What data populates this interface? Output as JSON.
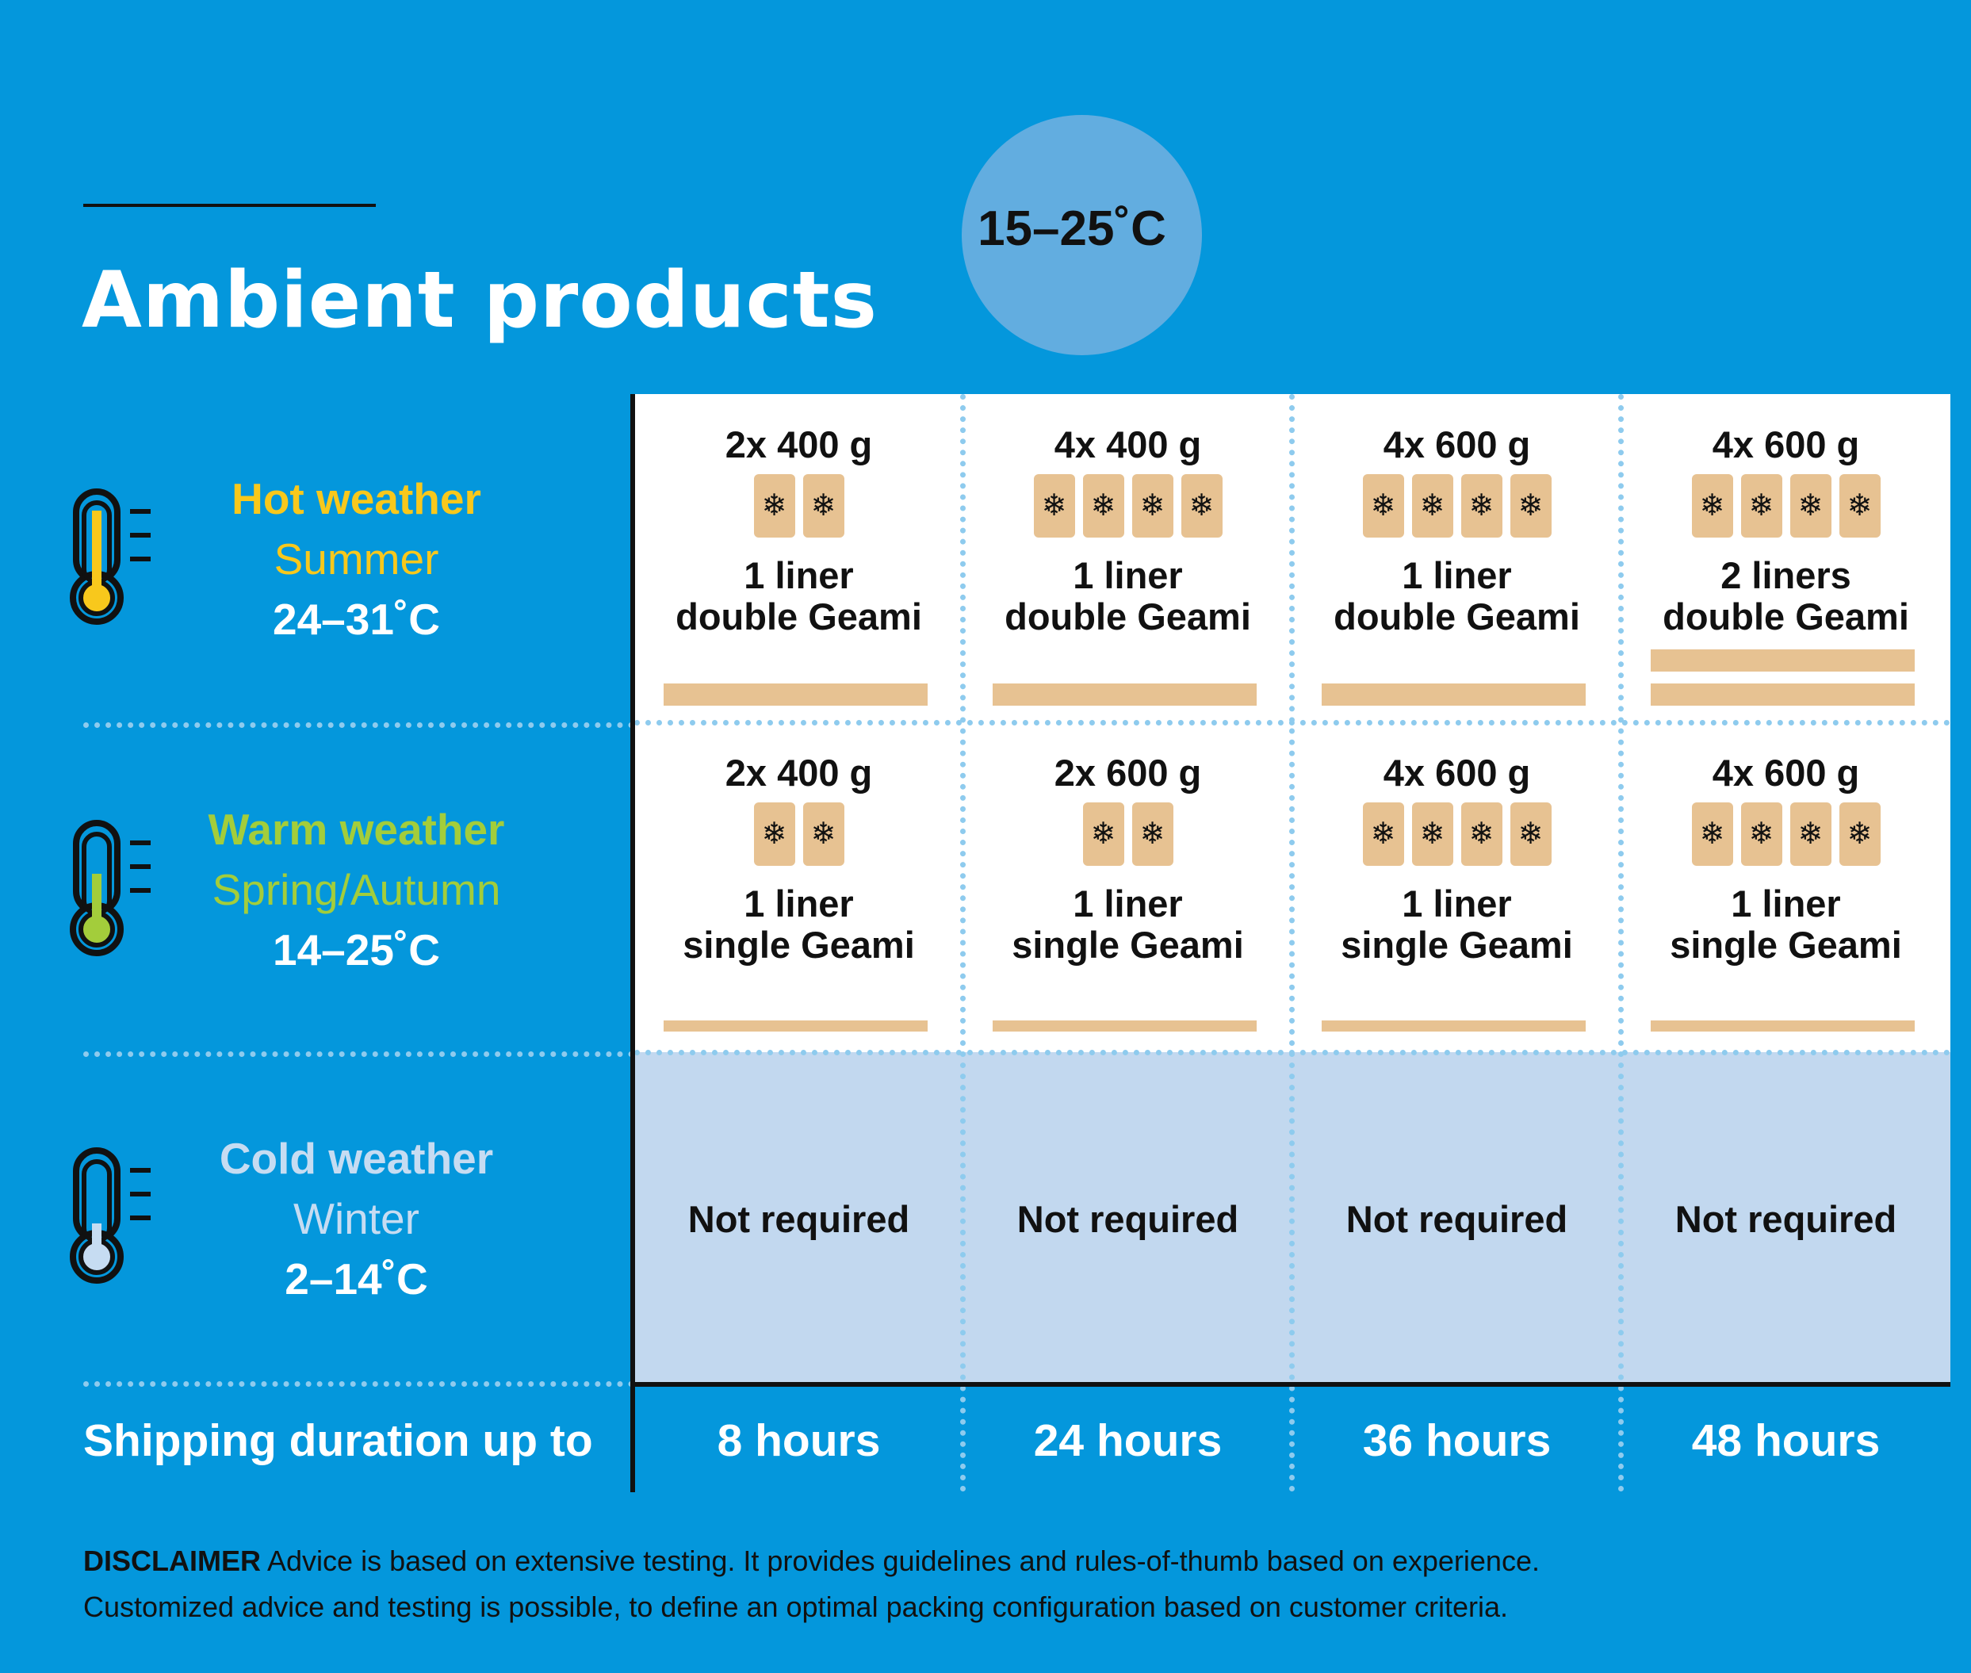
{
  "header": {
    "title": "Ambient products",
    "range": "15–25˚C"
  },
  "colors": {
    "background": "#0497dc",
    "hot": "#f8c81c",
    "warm": "#a3cd3b",
    "cold": "#c6dcf2",
    "pack": "#e7c292",
    "cold_cells": "#c2d8ef"
  },
  "rows": [
    {
      "title": "Hot weather",
      "season": "Summer",
      "temp": "24–31˚C",
      "icon": "thermometer-icon"
    },
    {
      "title": "Warm weather",
      "season": "Spring/Autumn",
      "temp": "14–25˚C",
      "icon": "thermometer-icon"
    },
    {
      "title": "Cold weather",
      "season": "Winter",
      "temp": "2–14˚C",
      "icon": "thermometer-icon"
    }
  ],
  "grid": {
    "hot": [
      {
        "qty": "2x 400 g",
        "packs": 2,
        "liners": "1 liner",
        "geami": "double Geami",
        "bars": 1
      },
      {
        "qty": "4x 400 g",
        "packs": 4,
        "liners": "1 liner",
        "geami": "double Geami",
        "bars": 1
      },
      {
        "qty": "4x 600 g",
        "packs": 4,
        "liners": "1 liner",
        "geami": "double Geami",
        "bars": 1
      },
      {
        "qty": "4x 600 g",
        "packs": 4,
        "liners": "2 liners",
        "geami": "double Geami",
        "bars": 2
      }
    ],
    "warm": [
      {
        "qty": "2x 400 g",
        "packs": 2,
        "liners": "1 liner",
        "geami": "single Geami",
        "bars": 1
      },
      {
        "qty": "2x 600 g",
        "packs": 2,
        "liners": "1 liner",
        "geami": "single Geami",
        "bars": 1
      },
      {
        "qty": "4x 600 g",
        "packs": 4,
        "liners": "1 liner",
        "geami": "single Geami",
        "bars": 1
      },
      {
        "qty": "4x 600 g",
        "packs": 4,
        "liners": "1 liner",
        "geami": "single Geami",
        "bars": 1
      }
    ],
    "cold": [
      "Not required",
      "Not required",
      "Not required",
      "Not required"
    ]
  },
  "shipping": {
    "label": "Shipping duration up to",
    "durations": [
      "8 hours",
      "24 hours",
      "36 hours",
      "48 hours"
    ]
  },
  "pack_icon": "snowflake-icon",
  "pack_glyph": "❄",
  "disclaimer": {
    "label": "DISCLAIMER",
    "line1": " Advice is based on extensive testing. It provides guidelines and rules-of-thumb based on experience.",
    "line2": "Customized advice and testing is possible, to define an optimal packing configuration based on customer criteria."
  }
}
